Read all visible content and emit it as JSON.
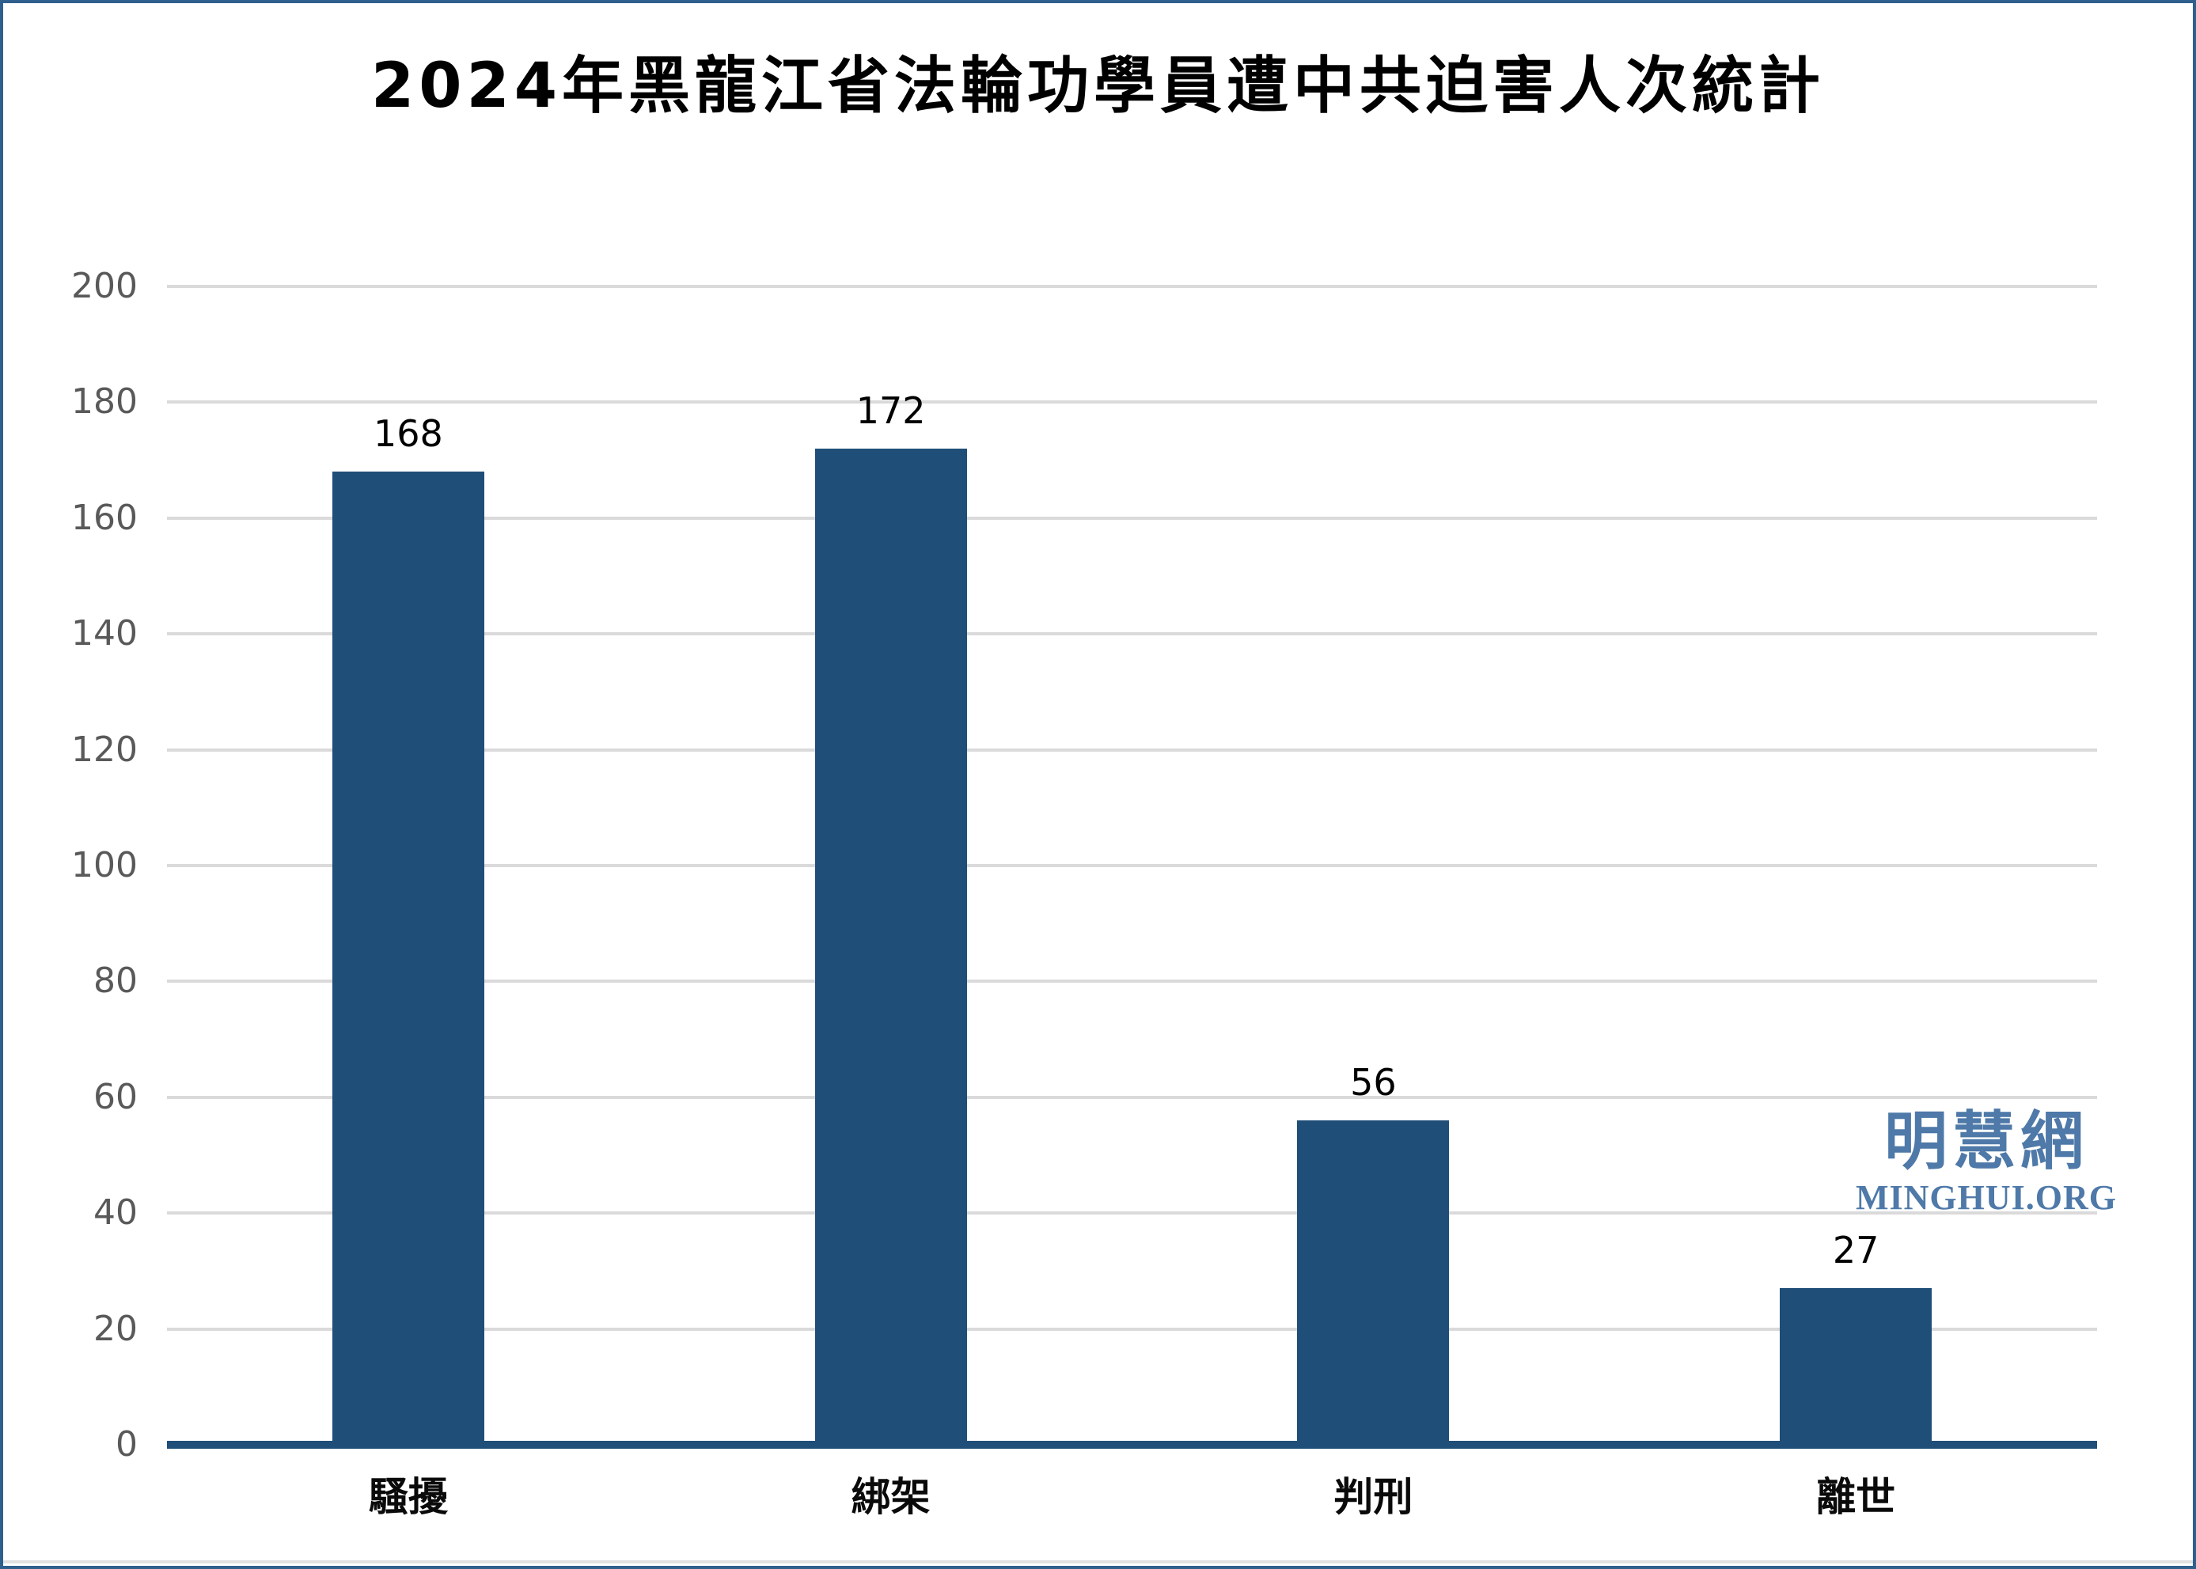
{
  "title": "2024年黑龍江省法輪功學員遭中共迫害人次統計",
  "watermark": {
    "cjk": "明慧網",
    "latin": "MINGHUI.ORG",
    "color": "#4e79a8"
  },
  "colors": {
    "bar": "#1f4e78",
    "axis_line": "#1f4e78",
    "gridline": "#dadada",
    "tick_label": "#595959",
    "frame_border": "#2e5f8d",
    "background": "#ffffff"
  },
  "chart_data": {
    "type": "bar",
    "title": "2024年黑龍江省法輪功學員遭中共迫害人次統計",
    "categories": [
      "騷擾",
      "綁架",
      "判刑",
      "離世"
    ],
    "values": [
      168,
      172,
      56,
      27
    ],
    "value_labels": [
      "168",
      "172",
      "56",
      "27"
    ],
    "xlabel": "",
    "ylabel": "",
    "ylim": [
      0,
      200
    ],
    "yticks": [
      0,
      20,
      40,
      60,
      80,
      100,
      120,
      140,
      160,
      180,
      200
    ],
    "grid": true,
    "legend": "none",
    "bar_color": "#1f4e78"
  }
}
